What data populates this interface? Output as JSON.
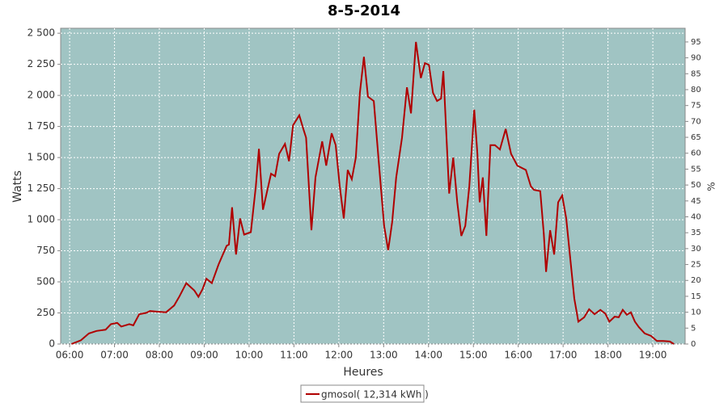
{
  "chart_data": {
    "type": "line",
    "title": "8-5-2014",
    "x_label": "Heures",
    "y_label": "Watts",
    "y2_label": "%",
    "x": [
      6.04,
      6.25,
      6.43,
      6.6,
      6.8,
      6.92,
      7.06,
      7.15,
      7.33,
      7.42,
      7.55,
      7.7,
      7.79,
      7.97,
      8.15,
      8.33,
      8.45,
      8.6,
      8.78,
      8.87,
      8.96,
      9.05,
      9.17,
      9.32,
      9.5,
      9.55,
      9.62,
      9.71,
      9.8,
      9.89,
      10.04,
      10.15,
      10.22,
      10.31,
      10.49,
      10.58,
      10.67,
      10.8,
      10.89,
      10.98,
      11.12,
      11.21,
      11.27,
      11.39,
      11.48,
      11.63,
      11.72,
      11.84,
      11.93,
      12.02,
      12.11,
      12.2,
      12.29,
      12.38,
      12.47,
      12.56,
      12.65,
      12.78,
      12.89,
      13.01,
      13.1,
      13.19,
      13.28,
      13.41,
      13.52,
      13.61,
      13.72,
      13.83,
      13.92,
      14.01,
      14.1,
      14.19,
      14.28,
      14.33,
      14.4,
      14.46,
      14.55,
      14.64,
      14.73,
      14.82,
      14.91,
      15.02,
      15.09,
      15.14,
      15.21,
      15.29,
      15.38,
      15.48,
      15.59,
      15.72,
      15.84,
      15.98,
      16.17,
      16.28,
      16.35,
      16.49,
      16.57,
      16.62,
      16.71,
      16.8,
      16.89,
      16.98,
      17.07,
      17.25,
      17.34,
      17.47,
      17.58,
      17.7,
      17.83,
      17.94,
      18.03,
      18.15,
      18.24,
      18.33,
      18.42,
      18.51,
      18.6,
      18.69,
      18.82,
      18.96,
      19.09,
      19.23,
      19.38,
      19.47
    ],
    "series": [
      {
        "name": "gmosol( 12,314 kWh )",
        "color": "#b00000",
        "values": [
          0,
          30,
          85,
          105,
          115,
          160,
          170,
          140,
          160,
          150,
          240,
          250,
          265,
          260,
          255,
          310,
          385,
          490,
          430,
          380,
          440,
          525,
          490,
          640,
          790,
          800,
          1100,
          720,
          1010,
          880,
          900,
          1270,
          1570,
          1080,
          1370,
          1350,
          1530,
          1610,
          1470,
          1760,
          1840,
          1730,
          1660,
          915,
          1340,
          1630,
          1435,
          1695,
          1600,
          1270,
          1010,
          1400,
          1325,
          1500,
          2020,
          2310,
          1990,
          1955,
          1470,
          950,
          755,
          980,
          1340,
          1660,
          2065,
          1855,
          2430,
          2140,
          2260,
          2245,
          2020,
          1955,
          1975,
          2195,
          1660,
          1210,
          1500,
          1140,
          870,
          950,
          1270,
          1885,
          1530,
          1140,
          1340,
          870,
          1600,
          1600,
          1565,
          1730,
          1530,
          1435,
          1400,
          1270,
          1240,
          1230,
          885,
          580,
          915,
          720,
          1140,
          1195,
          1010,
          365,
          180,
          215,
          280,
          240,
          275,
          245,
          180,
          220,
          215,
          275,
          235,
          255,
          180,
          135,
          85,
          65,
          25,
          25,
          20,
          0
        ]
      }
    ],
    "xlim": [
      5.8,
      19.72
    ],
    "xticks": [
      {
        "value": 6,
        "label": "06:00"
      },
      {
        "value": 7,
        "label": "07:00"
      },
      {
        "value": 8,
        "label": "08:00"
      },
      {
        "value": 9,
        "label": "09:00"
      },
      {
        "value": 10,
        "label": "10:00"
      },
      {
        "value": 11,
        "label": "11:00"
      },
      {
        "value": 12,
        "label": "12:00"
      },
      {
        "value": 13,
        "label": "13:00"
      },
      {
        "value": 14,
        "label": "14:00"
      },
      {
        "value": 15,
        "label": "15:00"
      },
      {
        "value": 16,
        "label": "16:00"
      },
      {
        "value": 17,
        "label": "17:00"
      },
      {
        "value": 18,
        "label": "18:00"
      },
      {
        "value": 19,
        "label": "19:00"
      }
    ],
    "ylim": [
      0,
      2540
    ],
    "yticks": [
      0,
      {
        "value": 250,
        "label": "250"
      },
      {
        "value": 500,
        "label": "500"
      },
      {
        "value": 750,
        "label": "750"
      },
      {
        "value": 1000,
        "label": "1 000"
      },
      {
        "value": 1250,
        "label": "1 250"
      },
      {
        "value": 1500,
        "label": "1 500"
      },
      {
        "value": 1750,
        "label": "1 750"
      },
      {
        "value": 2000,
        "label": "2 000"
      },
      {
        "value": 2250,
        "label": "2 250"
      },
      {
        "value": 2500,
        "label": "2 500"
      }
    ],
    "y2lim": [
      0,
      99.3
    ],
    "y2ticks": [
      0,
      5,
      10,
      15,
      20,
      25,
      30,
      35,
      40,
      45,
      50,
      55,
      60,
      65,
      70,
      75,
      80,
      85,
      90,
      95
    ],
    "grid": true,
    "legend": "bottom"
  }
}
